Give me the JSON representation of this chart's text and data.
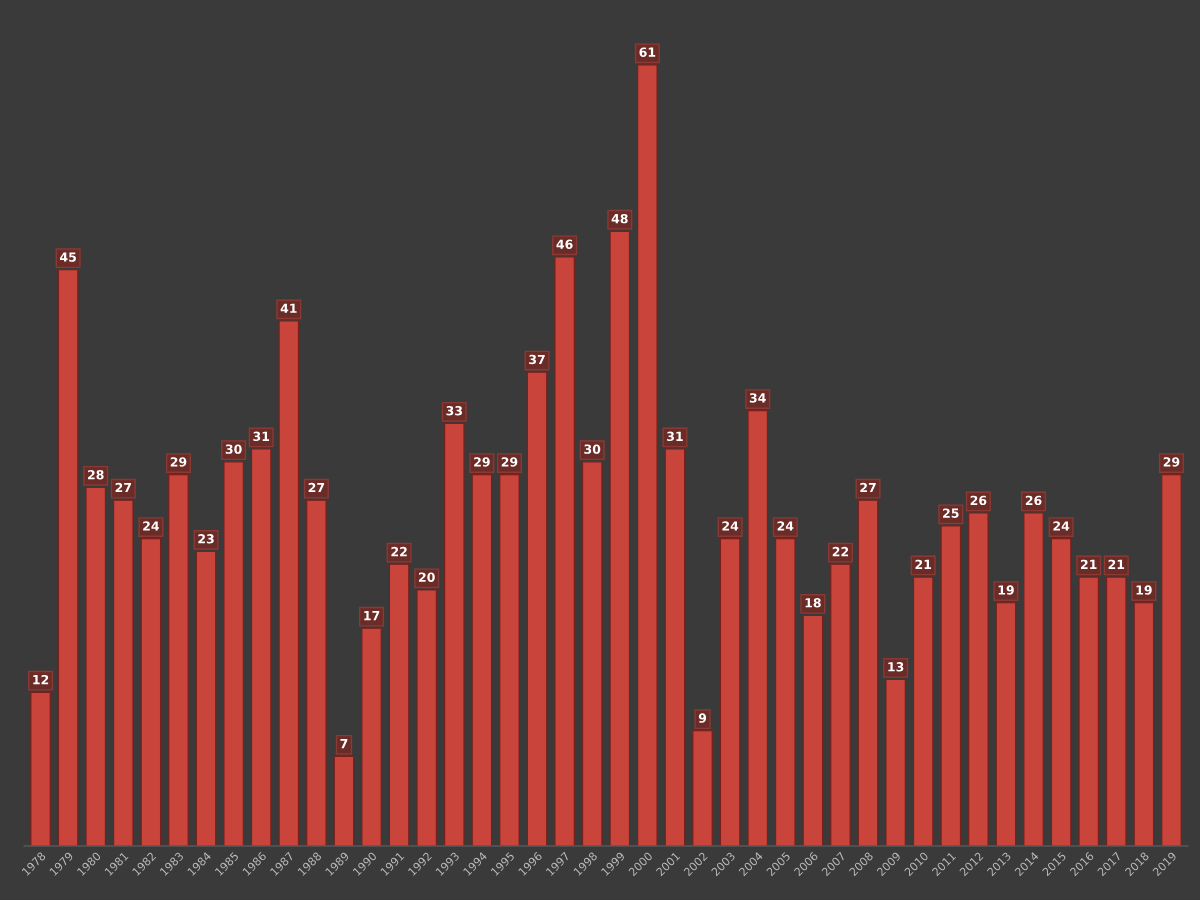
{
  "chart_data": {
    "type": "bar",
    "categories": [
      "1978",
      "1979",
      "1980",
      "1981",
      "1982",
      "1983",
      "1984",
      "1985",
      "1986",
      "1987",
      "1988",
      "1989",
      "1990",
      "1991",
      "1992",
      "1993",
      "1994",
      "1995",
      "1996",
      "1997",
      "1998",
      "1999",
      "2000",
      "2001",
      "2002",
      "2003",
      "2004",
      "2005",
      "2006",
      "2007",
      "2008",
      "2009",
      "2010",
      "2011",
      "2012",
      "2013",
      "2014",
      "2015",
      "2016",
      "2017",
      "2018",
      "2019"
    ],
    "values": [
      12,
      45,
      28,
      27,
      24,
      29,
      23,
      30,
      31,
      41,
      27,
      7,
      17,
      22,
      20,
      33,
      29,
      29,
      37,
      46,
      30,
      48,
      61,
      31,
      9,
      24,
      34,
      24,
      18,
      22,
      27,
      13,
      21,
      25,
      26,
      19,
      26,
      24,
      21,
      21,
      19,
      29
    ],
    "color": "#c9443a",
    "data_labels": true,
    "tick_labels": "x",
    "grid": false
  }
}
